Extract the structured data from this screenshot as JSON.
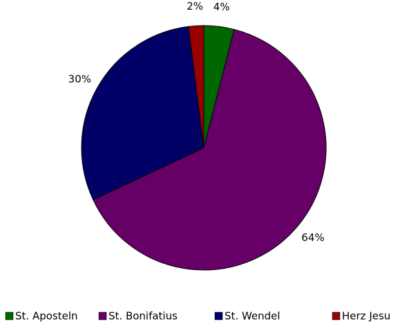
{
  "chart_data": {
    "type": "pie",
    "categories": [
      "St. Aposteln",
      "St. Bonifatius",
      "St. Wendel",
      "Herz Jesu"
    ],
    "values": [
      4,
      64,
      30,
      2
    ],
    "value_labels": [
      "4%",
      "64%",
      "30%",
      "2%"
    ],
    "colors": [
      "#006600",
      "#660066",
      "#000066",
      "#990000"
    ],
    "legend": "bottom"
  }
}
